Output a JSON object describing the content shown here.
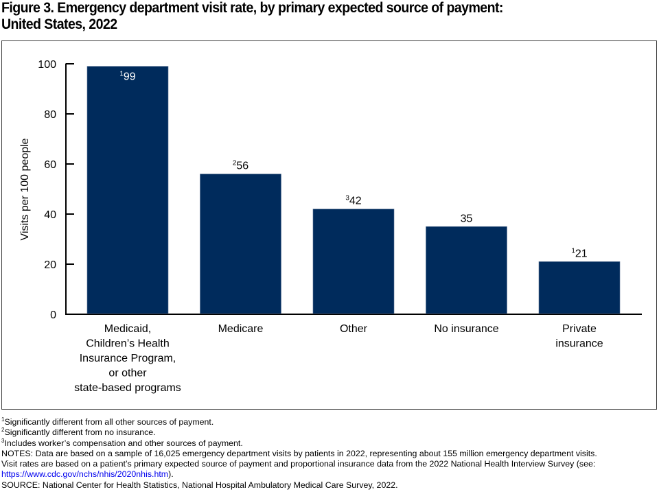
{
  "title_line1": "Figure 3. Emergency department visit rate, by primary expected source of payment:",
  "title_line2": "United States, 2022",
  "chart_data": {
    "type": "bar",
    "title": "Figure 3. Emergency department visit rate, by primary expected source of payment: United States, 2022",
    "xlabel": "",
    "ylabel": "Visits per 100 people",
    "ylim": [
      0,
      100
    ],
    "yticks": [
      0,
      20,
      40,
      60,
      80,
      100
    ],
    "grid": false,
    "categories": [
      [
        "Medicaid,",
        "Children’s Health",
        "Insurance Program,",
        "or other",
        "state-based programs"
      ],
      [
        "Medicare"
      ],
      [
        "Other"
      ],
      [
        "No insurance"
      ],
      [
        "Private",
        "insurance"
      ]
    ],
    "category_names": [
      "Medicaid, Children’s Health Insurance Program, or other state-based programs",
      "Medicare",
      "Other",
      "No insurance",
      "Private insurance"
    ],
    "values": [
      99,
      56,
      42,
      35,
      21
    ],
    "value_footnotes": [
      "1",
      "2",
      "3",
      "",
      "1"
    ],
    "bar_color": "#002B5C",
    "label_inside_first": true
  },
  "footnotes": [
    {
      "mark": "1",
      "text": "Significantly different from all other sources of payment."
    },
    {
      "mark": "2",
      "text": "Significantly different from no insurance."
    },
    {
      "mark": "3",
      "text": "Includes worker’s compensation and other sources of payment."
    }
  ],
  "notes_line1": "NOTES: Data are based on a sample of 16,025 emergency department visits by patients in 2022, representing about 155 million emergency department visits.",
  "notes_line2": "Visit rates are based on a patient’s primary expected source of payment and proportional insurance data from the 2022 National Health Interview Survey (see:",
  "notes_link": "https://www.cdc.gov/nchs/nhis/2020nhis.htm",
  "notes_link_suffix": ").",
  "source": "SOURCE: National Center for Health Statistics, National Hospital Ambulatory Medical Care Survey, 2022.",
  "link_color": "#0000EE"
}
